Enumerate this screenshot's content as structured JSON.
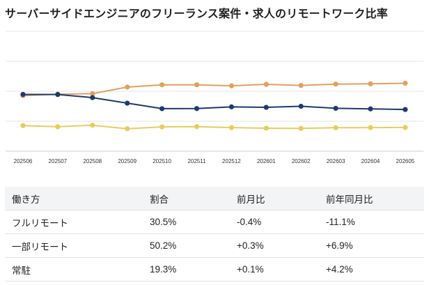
{
  "chart_data": {
    "type": "line",
    "title": "サーバーサイドエンジニアのフリーランス案件・求人のリモートワーク比率",
    "categories": [
      "202506",
      "202507",
      "202508",
      "202509",
      "202510",
      "202511",
      "202512",
      "202601",
      "202602",
      "202603",
      "202604",
      "202605"
    ],
    "ylim": [
      0,
      100
    ],
    "grid": true,
    "legend": "none",
    "series": [
      {
        "color": "#e0a060",
        "values": [
          46.4,
          47.6,
          48.0,
          53.5,
          55.4,
          55.4,
          54.6,
          55.8,
          54.9,
          56.0,
          56.2,
          56.7
        ]
      },
      {
        "color": "#1e3a6e",
        "values": [
          47.4,
          47.3,
          44.7,
          40.1,
          35.5,
          35.6,
          37.0,
          36.6,
          37.5,
          35.8,
          35.3,
          34.8
        ]
      },
      {
        "color": "#e8cc5c",
        "values": [
          21.4,
          20.4,
          21.7,
          18.8,
          20.3,
          20.5,
          19.7,
          19.2,
          19.0,
          19.6,
          19.7,
          19.8
        ]
      }
    ]
  },
  "table": {
    "headers": [
      "働き方",
      "割合",
      "前月比",
      "前年同月比"
    ],
    "rows": [
      [
        "フルリモート",
        "30.5%",
        "-0.4%",
        "-11.1%"
      ],
      [
        "一部リモート",
        "50.2%",
        "+0.3%",
        "+6.9%"
      ],
      [
        "常駐",
        "19.3%",
        "+0.1%",
        "+4.2%"
      ]
    ]
  }
}
